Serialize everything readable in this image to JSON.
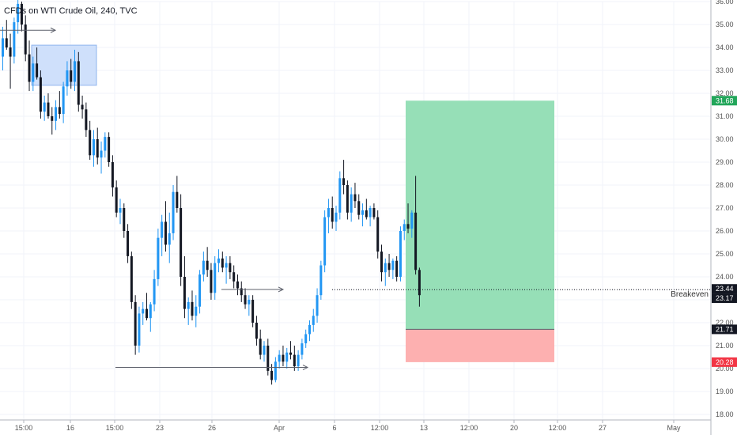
{
  "title": "CFDs on WTI Crude Oil, 240, TVC",
  "colors": {
    "up": "#2196f3",
    "down": "#131722",
    "profit_zone": "#96dfb7",
    "loss_zone": "#fdb0b0",
    "rect_fill": "#cfe0fb",
    "rect_stroke": "#8fb4ee",
    "tag_green": "#22a65a",
    "tag_red": "#f23645",
    "tag_dark": "#131722",
    "grid": "#f0f3fa",
    "axis_line": "#b2b5be"
  },
  "chart_data": {
    "type": "candlestick",
    "title": "CFDs on WTI Crude Oil, 240, TVC",
    "ylim": [
      17.8,
      36.2
    ],
    "y_ticks": [
      "18.00",
      "19.00",
      "20.00",
      "21.00",
      "22.00",
      "23.00",
      "24.00",
      "25.00",
      "26.00",
      "27.00",
      "28.00",
      "29.00",
      "30.00",
      "31.00",
      "32.00",
      "33.00",
      "34.00",
      "35.00",
      "36.00"
    ],
    "x_ticks": [
      "15:00",
      "16",
      "15:00",
      "23",
      "26",
      "Apr",
      "6",
      "12:00",
      "13",
      "12:00",
      "20",
      "12:00",
      "27",
      "May"
    ],
    "price_tags": [
      {
        "label": "31.68",
        "value": 31.68,
        "color": "green"
      },
      {
        "label": "23.44",
        "value": 23.44,
        "color": "dark"
      },
      {
        "label": "23.17",
        "value": 23.17,
        "color": "dark"
      },
      {
        "label": "21.71",
        "value": 21.71,
        "color": "dark"
      },
      {
        "label": "20.28",
        "value": 20.28,
        "color": "red"
      }
    ],
    "annotations": {
      "breakeven_label": "Breakeven",
      "breakeven_value": 23.44,
      "position": {
        "entry": 21.71,
        "take_profit": 31.68,
        "stop_loss": 20.28
      },
      "supply_zone": {
        "top": 34.1,
        "bottom": 32.35
      },
      "arrows": [
        {
          "value": 34.75
        },
        {
          "value": 23.45
        },
        {
          "value": 20.05
        },
        {
          "value": 20.05
        }
      ]
    },
    "candles": [
      [
        33.6,
        34.9,
        33.0,
        34.4
      ],
      [
        34.4,
        35.2,
        33.9,
        34.0
      ],
      [
        34.0,
        34.6,
        32.2,
        33.6
      ],
      [
        33.6,
        35.3,
        33.3,
        35.1
      ],
      [
        35.1,
        36.2,
        34.6,
        35.9
      ],
      [
        35.9,
        36.0,
        34.7,
        35.0
      ],
      [
        35.0,
        35.4,
        33.4,
        33.7
      ],
      [
        33.7,
        34.3,
        32.1,
        32.5
      ],
      [
        32.5,
        33.6,
        32.1,
        33.3
      ],
      [
        33.3,
        34.0,
        32.6,
        32.7
      ],
      [
        32.7,
        33.0,
        30.9,
        31.2
      ],
      [
        31.2,
        31.9,
        30.8,
        31.6
      ],
      [
        31.6,
        32.0,
        30.9,
        31.0
      ],
      [
        31.0,
        31.4,
        30.2,
        30.8
      ],
      [
        30.8,
        31.7,
        30.4,
        31.4
      ],
      [
        31.4,
        32.1,
        30.9,
        31.1
      ],
      [
        31.1,
        32.5,
        30.7,
        32.3
      ],
      [
        32.3,
        33.4,
        31.9,
        33.0
      ],
      [
        33.0,
        33.5,
        32.2,
        32.5
      ],
      [
        32.5,
        33.9,
        32.1,
        33.4
      ],
      [
        33.4,
        33.8,
        31.2,
        31.5
      ],
      [
        31.5,
        31.9,
        30.9,
        31.3
      ],
      [
        31.3,
        31.6,
        30.1,
        30.4
      ],
      [
        30.4,
        30.8,
        29.1,
        29.3
      ],
      [
        29.3,
        30.4,
        28.8,
        30.0
      ],
      [
        30.0,
        30.5,
        28.9,
        29.2
      ],
      [
        29.2,
        29.9,
        28.5,
        29.5
      ],
      [
        29.5,
        30.3,
        29.2,
        30.1
      ],
      [
        30.1,
        30.3,
        28.8,
        29.0
      ],
      [
        29.0,
        29.3,
        27.5,
        27.9
      ],
      [
        27.9,
        28.2,
        26.6,
        26.8
      ],
      [
        26.8,
        27.4,
        26.3,
        27.0
      ],
      [
        27.0,
        27.2,
        25.7,
        26.0
      ],
      [
        26.0,
        26.3,
        24.6,
        24.9
      ],
      [
        24.9,
        25.1,
        22.6,
        22.9
      ],
      [
        22.9,
        23.2,
        20.6,
        21.0
      ],
      [
        21.0,
        22.7,
        20.7,
        22.4
      ],
      [
        22.4,
        22.9,
        21.9,
        22.6
      ],
      [
        22.6,
        23.3,
        22.1,
        22.2
      ],
      [
        22.2,
        22.9,
        21.6,
        22.8
      ],
      [
        22.8,
        24.3,
        22.5,
        23.9
      ],
      [
        23.9,
        26.1,
        23.6,
        25.7
      ],
      [
        25.7,
        26.7,
        24.9,
        26.4
      ],
      [
        26.4,
        27.3,
        25.1,
        25.4
      ],
      [
        25.4,
        26.8,
        24.6,
        25.9
      ],
      [
        25.9,
        28.0,
        25.6,
        27.7
      ],
      [
        27.7,
        28.4,
        26.8,
        27.0
      ],
      [
        27.0,
        27.6,
        23.6,
        24.0
      ],
      [
        24.0,
        24.9,
        22.2,
        22.6
      ],
      [
        22.6,
        23.1,
        21.9,
        22.9
      ],
      [
        22.9,
        23.4,
        22.1,
        22.3
      ],
      [
        22.3,
        23.2,
        21.8,
        22.7
      ],
      [
        22.7,
        24.3,
        22.4,
        24.1
      ],
      [
        24.1,
        25.1,
        23.8,
        24.7
      ],
      [
        24.7,
        25.3,
        24.0,
        24.3
      ],
      [
        24.3,
        24.6,
        23.0,
        23.3
      ],
      [
        23.3,
        24.9,
        23.0,
        24.6
      ],
      [
        24.6,
        25.2,
        24.2,
        24.8
      ],
      [
        24.8,
        25.1,
        24.2,
        24.4
      ],
      [
        24.4,
        24.9,
        23.7,
        24.6
      ],
      [
        24.6,
        24.9,
        23.9,
        24.2
      ],
      [
        24.2,
        24.5,
        23.5,
        23.8
      ],
      [
        23.8,
        24.1,
        23.2,
        23.5
      ],
      [
        23.5,
        23.8,
        22.9,
        23.2
      ],
      [
        23.2,
        23.5,
        22.6,
        22.8
      ],
      [
        22.8,
        23.2,
        22.3,
        23.0
      ],
      [
        23.0,
        23.2,
        21.8,
        22.0
      ],
      [
        22.0,
        22.3,
        21.0,
        21.3
      ],
      [
        21.3,
        21.7,
        20.4,
        20.6
      ],
      [
        20.6,
        21.2,
        20.3,
        21.0
      ],
      [
        21.0,
        21.3,
        19.7,
        19.9
      ],
      [
        19.9,
        20.2,
        19.3,
        19.5
      ],
      [
        19.5,
        20.5,
        19.4,
        20.3
      ],
      [
        20.3,
        20.8,
        20.0,
        20.6
      ],
      [
        20.6,
        21.0,
        20.1,
        20.3
      ],
      [
        20.3,
        20.9,
        20.0,
        20.7
      ],
      [
        20.7,
        21.2,
        20.4,
        20.6
      ],
      [
        20.6,
        21.0,
        19.9,
        20.1
      ],
      [
        20.1,
        20.8,
        19.9,
        20.6
      ],
      [
        20.6,
        21.3,
        20.4,
        21.1
      ],
      [
        21.1,
        21.7,
        20.9,
        21.5
      ],
      [
        21.5,
        22.1,
        21.2,
        21.9
      ],
      [
        21.9,
        22.6,
        21.6,
        22.3
      ],
      [
        22.3,
        23.5,
        22.0,
        23.2
      ],
      [
        23.2,
        24.7,
        23.0,
        24.5
      ],
      [
        24.5,
        26.9,
        24.2,
        26.6
      ],
      [
        26.6,
        27.4,
        25.9,
        27.0
      ],
      [
        27.0,
        27.5,
        26.1,
        26.4
      ],
      [
        26.4,
        27.1,
        26.0,
        26.8
      ],
      [
        26.8,
        28.6,
        26.5,
        28.3
      ],
      [
        28.3,
        29.1,
        27.6,
        28.0
      ],
      [
        28.0,
        28.2,
        26.5,
        26.8
      ],
      [
        26.8,
        27.9,
        26.4,
        27.6
      ],
      [
        27.6,
        28.1,
        27.0,
        27.3
      ],
      [
        27.3,
        27.6,
        26.5,
        26.7
      ],
      [
        26.7,
        27.2,
        26.2,
        26.9
      ],
      [
        26.9,
        27.4,
        26.5,
        26.6
      ],
      [
        26.6,
        27.1,
        26.2,
        27.0
      ],
      [
        27.0,
        27.2,
        26.5,
        26.6
      ],
      [
        26.6,
        26.9,
        24.8,
        25.1
      ],
      [
        25.1,
        25.4,
        23.8,
        24.2
      ],
      [
        24.2,
        24.8,
        23.6,
        24.6
      ],
      [
        24.6,
        25.0,
        24.0,
        24.3
      ],
      [
        24.3,
        24.8,
        23.9,
        24.7
      ],
      [
        24.7,
        24.9,
        23.8,
        24.0
      ],
      [
        24.0,
        26.2,
        23.8,
        26.0
      ],
      [
        26.0,
        26.5,
        25.6,
        26.3
      ],
      [
        26.3,
        27.2,
        25.9,
        26.1
      ],
      [
        26.1,
        26.9,
        25.7,
        26.8
      ],
      [
        26.8,
        28.4,
        24.1,
        24.3
      ],
      [
        24.3,
        24.4,
        22.7,
        23.2
      ]
    ]
  }
}
